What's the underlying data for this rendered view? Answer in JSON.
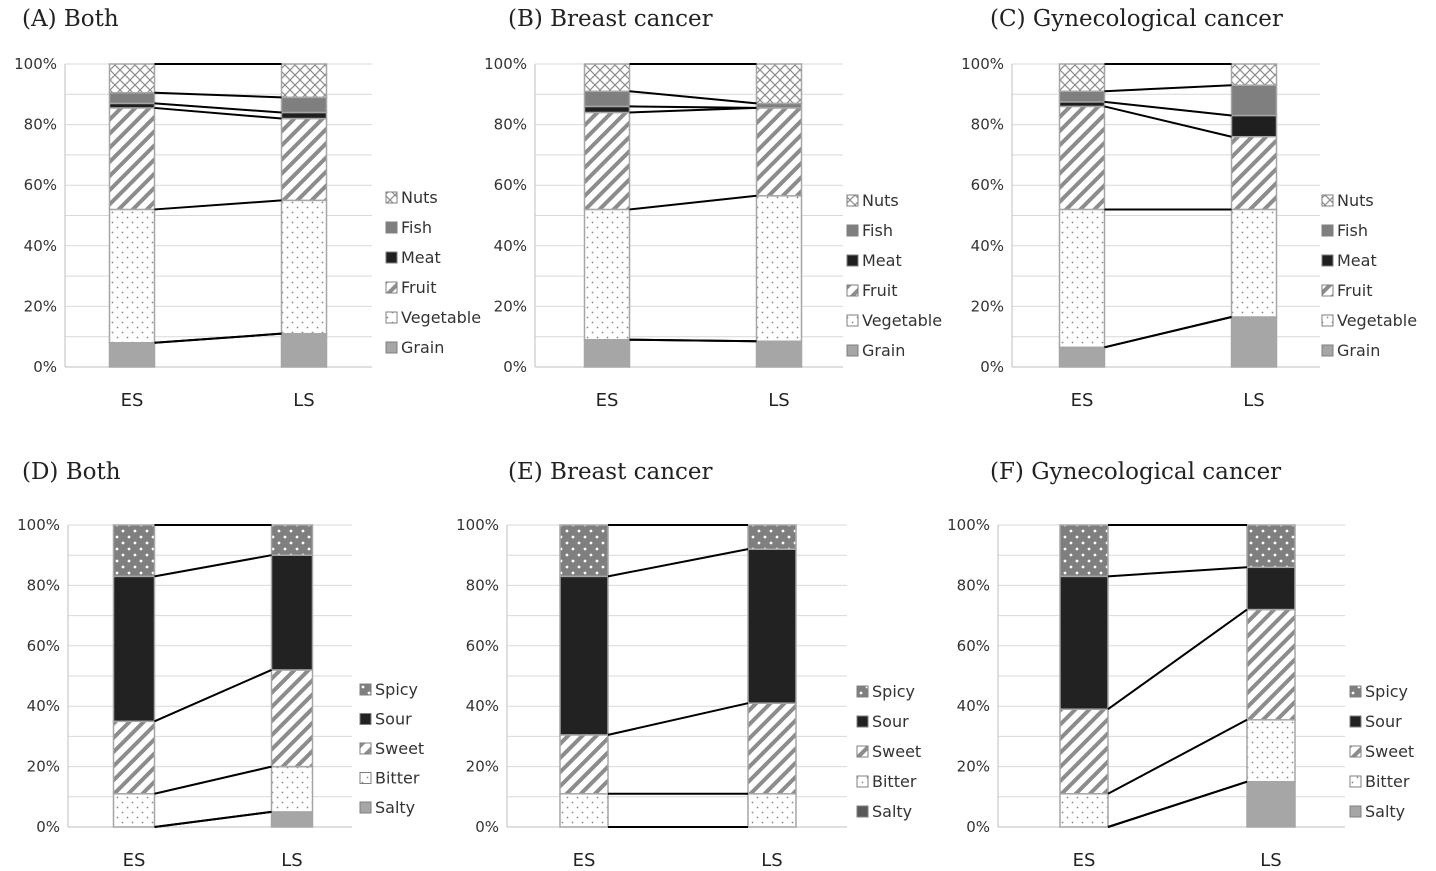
{
  "chart_data": [
    {
      "type": "bar",
      "stacked": true,
      "title": "(A) Both",
      "categories": [
        "ES",
        "LS"
      ],
      "ylim": [
        0,
        100
      ],
      "y_ticks": [
        "0%",
        "20%",
        "40%",
        "60%",
        "80%",
        "100%"
      ],
      "grid": true,
      "legend_position": "right",
      "series": [
        {
          "name": "Grain",
          "values": [
            8,
            11
          ]
        },
        {
          "name": "Vegetable",
          "values": [
            44,
            44
          ]
        },
        {
          "name": "Fruit",
          "values": [
            33.5,
            27
          ]
        },
        {
          "name": "Meat",
          "values": [
            1.5,
            2
          ]
        },
        {
          "name": "Fish",
          "values": [
            3.5,
            5
          ]
        },
        {
          "name": "Nuts",
          "values": [
            9.5,
            11
          ]
        }
      ]
    },
    {
      "type": "bar",
      "stacked": true,
      "title": "(B) Breast cancer",
      "categories": [
        "ES",
        "LS"
      ],
      "ylim": [
        0,
        100
      ],
      "y_ticks": [
        "0%",
        "20%",
        "40%",
        "60%",
        "80%",
        "100%"
      ],
      "grid": true,
      "legend_position": "right",
      "series": [
        {
          "name": "Grain",
          "values": [
            9,
            8.5
          ]
        },
        {
          "name": "Vegetable",
          "values": [
            43,
            48
          ]
        },
        {
          "name": "Fruit",
          "values": [
            32,
            29
          ]
        },
        {
          "name": "Meat",
          "values": [
            2,
            0
          ]
        },
        {
          "name": "Fish",
          "values": [
            5,
            1.5
          ]
        },
        {
          "name": "Nuts",
          "values": [
            9,
            13
          ]
        }
      ]
    },
    {
      "type": "bar",
      "stacked": true,
      "title": "(C) Gynecological cancer",
      "categories": [
        "ES",
        "LS"
      ],
      "ylim": [
        0,
        100
      ],
      "y_ticks": [
        "0%",
        "20%",
        "40%",
        "60%",
        "80%",
        "100%"
      ],
      "grid": true,
      "legend_position": "right",
      "series": [
        {
          "name": "Grain",
          "values": [
            6.5,
            16.5
          ]
        },
        {
          "name": "Vegetable",
          "values": [
            45.5,
            35.5
          ]
        },
        {
          "name": "Fruit",
          "values": [
            34,
            24
          ]
        },
        {
          "name": "Meat",
          "values": [
            1.5,
            7
          ]
        },
        {
          "name": "Fish",
          "values": [
            3.5,
            10
          ]
        },
        {
          "name": "Nuts",
          "values": [
            9,
            7
          ]
        }
      ]
    },
    {
      "type": "bar",
      "stacked": true,
      "title": "(D) Both",
      "categories": [
        "ES",
        "LS"
      ],
      "ylim": [
        0,
        100
      ],
      "y_ticks": [
        "0%",
        "20%",
        "40%",
        "60%",
        "80%",
        "100%"
      ],
      "grid": true,
      "legend_position": "right",
      "series": [
        {
          "name": "Salty",
          "values": [
            0,
            5
          ]
        },
        {
          "name": "Bitter",
          "values": [
            11,
            15
          ]
        },
        {
          "name": "Sweet",
          "values": [
            24,
            32
          ]
        },
        {
          "name": "Sour",
          "values": [
            48,
            38
          ]
        },
        {
          "name": "Spicy",
          "values": [
            17,
            10
          ]
        }
      ]
    },
    {
      "type": "bar",
      "stacked": true,
      "title": "(E) Breast cancer",
      "categories": [
        "ES",
        "LS"
      ],
      "ylim": [
        0,
        100
      ],
      "y_ticks": [
        "0%",
        "20%",
        "40%",
        "60%",
        "80%",
        "100%"
      ],
      "grid": true,
      "legend_position": "right",
      "series": [
        {
          "name": "Salty",
          "values": [
            0,
            0
          ]
        },
        {
          "name": "Bitter",
          "values": [
            11,
            11
          ]
        },
        {
          "name": "Sweet",
          "values": [
            19.5,
            30
          ]
        },
        {
          "name": "Sour",
          "values": [
            52.5,
            51
          ]
        },
        {
          "name": "Spicy",
          "values": [
            17,
            8
          ]
        }
      ]
    },
    {
      "type": "bar",
      "stacked": true,
      "title": "(F) Gynecological cancer",
      "categories": [
        "ES",
        "LS"
      ],
      "ylim": [
        0,
        100
      ],
      "y_ticks": [
        "0%",
        "20%",
        "40%",
        "60%",
        "80%",
        "100%"
      ],
      "grid": true,
      "legend_position": "right",
      "series": [
        {
          "name": "Salty",
          "values": [
            0,
            15
          ]
        },
        {
          "name": "Bitter",
          "values": [
            11,
            20.5
          ]
        },
        {
          "name": "Sweet",
          "values": [
            28,
            36.5
          ]
        },
        {
          "name": "Sour",
          "values": [
            44,
            14
          ]
        },
        {
          "name": "Spicy",
          "values": [
            17,
            14
          ]
        }
      ]
    }
  ],
  "style": {
    "fills": {
      "Grain": "#a6a6a6",
      "Vegetable": "pattern:dots-light",
      "Fruit": "pattern:diagonal",
      "Meat": "#1f1f1f",
      "Fish": "#7f7f7f",
      "Nuts": "pattern:crosshatch",
      "Salty": "#a6a6a6",
      "Bitter": "pattern:dots-light",
      "Sweet": "pattern:diagonal",
      "Sour": "#222222",
      "Spicy": "pattern:dots-on-gray"
    },
    "legend_swatch_overrides": {
      "4": {
        "Salty": "#595959"
      }
    },
    "grid_color": "#d9d9d9",
    "connector_color": "#000000",
    "bar_outline": "#a6a6a6"
  }
}
